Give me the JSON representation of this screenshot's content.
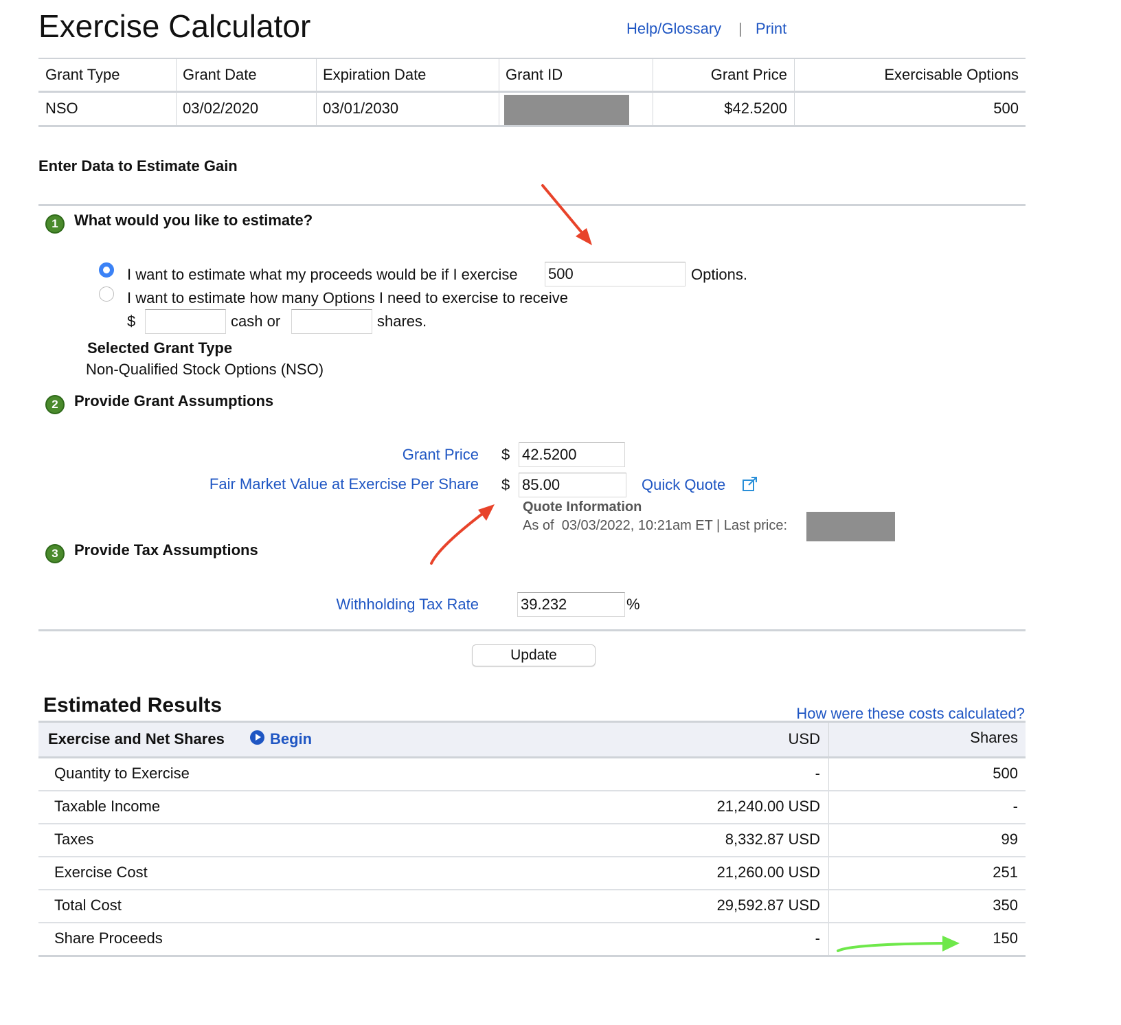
{
  "header": {
    "title": "Exercise Calculator",
    "links": [
      "Help/Glossary",
      "|",
      "Print"
    ]
  },
  "grant_table": {
    "columns": [
      "Grant Type",
      "Grant Date",
      "Expiration Date",
      "Grant ID",
      "Grant Price",
      "Exercisable Options"
    ],
    "rows": [
      [
        "NSO",
        "03/02/2020",
        "03/01/2030",
        null,
        "$42.5200",
        "500"
      ]
    ]
  },
  "intro": "Enter Data to Estimate Gain",
  "step1": {
    "number": "1",
    "title": "What would you like to estimate?",
    "option1": {
      "before": "I want to estimate what my proceeds would be if I exercise",
      "input": "500",
      "after": "Options."
    },
    "option2": {
      "text": "I want to estimate how many Options I need to exercise to receive",
      "currency": "$",
      "cash_label": "cash or",
      "shares_label": "shares."
    },
    "selected_grant_type": {
      "label": "Selected Grant Type",
      "value": "Non-Qualified Stock Options (NSO)"
    }
  },
  "step2": {
    "number": "2",
    "title": "Provide Grant Assumptions",
    "fields": [
      {
        "label": "Grant Price",
        "currency": "$",
        "value": "42.5200"
      },
      {
        "label": "Fair Market Value at Exercise Per Share",
        "currency": "$",
        "value": "85.00"
      }
    ],
    "quick_quote": "Quick Quote",
    "quote_info": {
      "title": "Quote Information",
      "text": "As of  03/03/2022, 10:21am ET | Last price:"
    }
  },
  "step3": {
    "number": "3",
    "title": "Provide Tax Assumptions",
    "field": {
      "label": "Withholding Tax Rate",
      "value": "39.232",
      "unit": "%"
    }
  },
  "update_button": "Update",
  "results": {
    "title": "Estimated Results",
    "help_link": "How were these costs calculated?",
    "header": {
      "title": "Exercise and Net Shares",
      "begin": "Begin",
      "usd": "USD",
      "shares": "Shares"
    },
    "rows": [
      [
        "Quantity to Exercise",
        "-",
        "500"
      ],
      [
        "Taxable Income",
        "21,240.00 USD",
        "-"
      ],
      [
        "Taxes",
        "8,332.87 USD",
        "99"
      ],
      [
        "Exercise Cost",
        "21,260.00 USD",
        "251"
      ],
      [
        "Total Cost",
        "29,592.87 USD",
        "350"
      ],
      [
        "Share Proceeds",
        "-",
        "150"
      ]
    ]
  }
}
